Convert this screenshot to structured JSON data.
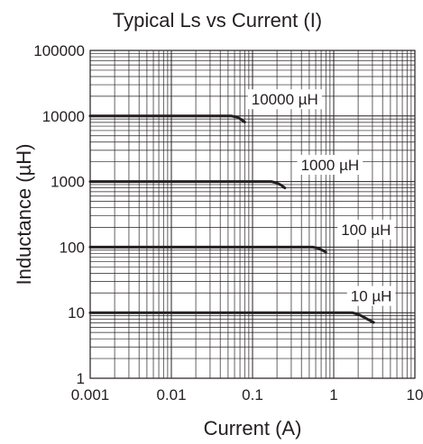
{
  "chart_data": {
    "type": "line",
    "title": "Typical Ls vs Current (I)",
    "xlabel": "Current (A)",
    "ylabel": "Inductance (µH)",
    "xscale": "log",
    "yscale": "log",
    "xlim": [
      0.001,
      10
    ],
    "ylim": [
      1,
      100000
    ],
    "grid": true,
    "x_ticks": [
      {
        "value": 0.001,
        "label": "0.001"
      },
      {
        "value": 0.01,
        "label": "0.01"
      },
      {
        "value": 0.1,
        "label": "0.1"
      },
      {
        "value": 1,
        "label": "1"
      },
      {
        "value": 10,
        "label": "10"
      }
    ],
    "y_ticks": [
      {
        "value": 1,
        "label": "1"
      },
      {
        "value": 10,
        "label": "10"
      },
      {
        "value": 100,
        "label": "100"
      },
      {
        "value": 1000,
        "label": "1000"
      },
      {
        "value": 10000,
        "label": "10000"
      },
      {
        "value": 100000,
        "label": "100000"
      }
    ],
    "series": [
      {
        "name": "10000 µH",
        "points": [
          [
            0.001,
            10000
          ],
          [
            0.055,
            10000
          ],
          [
            0.065,
            9600
          ],
          [
            0.072,
            8900
          ],
          [
            0.08,
            8100
          ]
        ]
      },
      {
        "name": "1000 µH",
        "points": [
          [
            0.001,
            1000
          ],
          [
            0.17,
            1000
          ],
          [
            0.2,
            950
          ],
          [
            0.225,
            880
          ],
          [
            0.25,
            800
          ]
        ]
      },
      {
        "name": "100 µH",
        "points": [
          [
            0.001,
            100
          ],
          [
            0.55,
            100
          ],
          [
            0.65,
            96
          ],
          [
            0.72,
            90
          ],
          [
            0.8,
            84
          ]
        ]
      },
      {
        "name": "10 µH",
        "points": [
          [
            0.001,
            10
          ],
          [
            1.7,
            10
          ],
          [
            2.1,
            9.2
          ],
          [
            2.6,
            8
          ],
          [
            3.1,
            7.1
          ]
        ]
      }
    ],
    "annotations": [
      {
        "text": "10000 µH",
        "x": 0.25,
        "y": 18000
      },
      {
        "text": "1000 µH",
        "x": 0.9,
        "y": 1800
      },
      {
        "text": "100 µH",
        "x": 2.5,
        "y": 185
      },
      {
        "text": "10 µH",
        "x": 2.9,
        "y": 18
      }
    ]
  }
}
